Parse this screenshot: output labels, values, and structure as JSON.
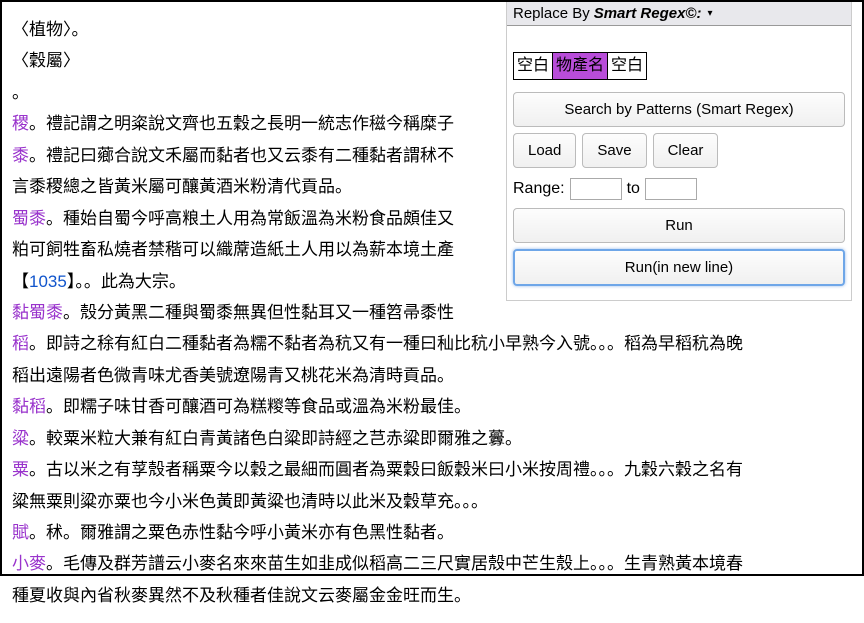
{
  "content": {
    "lines": [
      {
        "plain": "〈植物〉。"
      },
      {
        "plain": "〈穀屬〉"
      },
      {
        "plain": "。"
      },
      {
        "name": "稷",
        "text": "。禮記謂之明粢說文齊也五穀之長明一統志作稵今稱糜子"
      },
      {
        "name": "黍",
        "text": "。禮記曰薌合說文禾屬而黏者也又云黍有二種黏者謂秫不"
      },
      {
        "plain": "言黍稷總之皆黃米屬可釀黃酒米粉清代貢品。"
      },
      {
        "name": "蜀黍",
        "text": "。種始自蜀今呼高粮土人用為常飯溫為米粉食品頗佳又"
      },
      {
        "plain": "粕可飼牲畜私燒者禁稭可以織蓆造紙土人用以為薪本境土產"
      },
      {
        "bracketPre": "【",
        "bracketNum": "1035",
        "bracketPost": "】",
        "text": "。。此為大宗。"
      },
      {
        "name": "黏蜀黍",
        "text": "。殼分黃黑二種與蜀黍無異但性黏耳又一種笤帚黍性"
      },
      {
        "name": "稻",
        "text": "。即詩之稌有紅白二種黏者為糯不黏者為秔又有一種曰秈比秔小早熟今入號。。。稻為早稻秔為晚"
      },
      {
        "plain": "稻出遠陽者色微青味尤香美號遼陽青又桃花米為清時貢品。"
      },
      {
        "name": "黏稻",
        "text": "。即糯子味甘香可釀酒可為糕糉等食品或溫為米粉最佳。"
      },
      {
        "name": "粱",
        "text": "。較粟米粒大兼有紅白青黃諸色白粱即詩經之芑赤粱即爾雅之虋。"
      },
      {
        "name": "粟",
        "text": "。古以米之有莩殼者稱粟今以穀之最細而圓者為粟穀曰飯穀米曰小米按周禮。。。九穀六穀之名有"
      },
      {
        "plain": "粱無粟則粱亦粟也今小米色黃即黃粱也清時以此米及穀草充。。。"
      },
      {
        "name": "賦",
        "text": "。秫。爾雅謂之粟色赤性黏今呼小黃米亦有色黑性黏者。"
      },
      {
        "name": "小麥",
        "text": "。毛傳及群芳譜云小麥名來來苗生如韭成似稻高二三尺實居殼中芒生殼上。。。生青熟黃本境春"
      },
      {
        "plain": "種夏收與內省秋麥異然不及秋種者佳說文云麥屬金金旺而生。"
      }
    ]
  },
  "panel": {
    "titlePrefix": "Replace By ",
    "titleBrand": "Smart Regex©:",
    "arrow": "▾",
    "pattern": {
      "seg1": "空白",
      "seg2": "物產名",
      "seg3": "空白"
    },
    "searchBtn": "Search by Patterns (Smart Regex)",
    "loadBtn": "Load",
    "saveBtn": "Save",
    "clearBtn": "Clear",
    "rangeLabel": "Range:",
    "rangeTo": "to",
    "runBtn": "Run",
    "runNewLineBtn": "Run(in new line)"
  },
  "styling": {
    "entryNameColor": "#9933cc",
    "bracketNumColor": "#1155cc",
    "highlightBg": "#b84dd9",
    "pageWidth": 864,
    "pageHeight": 576,
    "fontSize": 17,
    "lineHeight": 1.85
  }
}
